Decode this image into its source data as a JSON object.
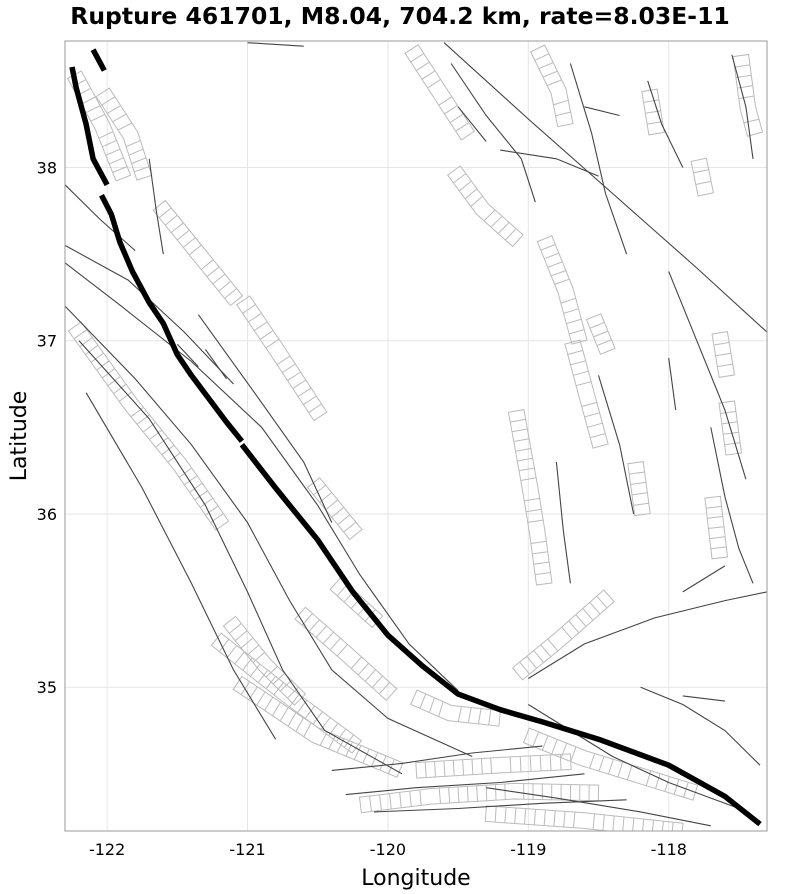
{
  "chart_data": {
    "type": "map",
    "title": "Rupture 461701, M8.04, 704.2 km, rate=8.03E-11",
    "xlabel": "Longitude",
    "ylabel": "Latitude",
    "xlim": [
      -122.3,
      -117.3
    ],
    "ylim": [
      34.17,
      38.73
    ],
    "x_ticks": [
      -122,
      -121,
      -120,
      -119,
      -118
    ],
    "x_tick_labels": [
      "-122",
      "-121",
      "-120",
      "-119",
      "-118"
    ],
    "y_ticks": [
      35,
      36,
      37,
      38
    ],
    "y_tick_labels": [
      "35",
      "36",
      "37",
      "38"
    ],
    "rupture_color": "#000000",
    "fault_color": "#444444",
    "footprint_color": "#bbbbbb",
    "rupture_segments": [
      [
        [
          -122.25,
          38.58
        ],
        [
          -122.22,
          38.46
        ],
        [
          -122.15,
          38.25
        ],
        [
          -122.1,
          38.05
        ],
        [
          -122.0,
          37.9
        ]
      ],
      [
        [
          -122.04,
          37.84
        ],
        [
          -121.97,
          37.73
        ],
        [
          -121.91,
          37.57
        ],
        [
          -121.82,
          37.4
        ],
        [
          -121.7,
          37.22
        ],
        [
          -121.6,
          37.1
        ],
        [
          -121.5,
          36.92
        ],
        [
          -121.4,
          36.8
        ],
        [
          -121.27,
          36.66
        ],
        [
          -121.15,
          36.53
        ],
        [
          -121.04,
          36.42
        ]
      ],
      [
        [
          -121.04,
          36.4
        ],
        [
          -120.8,
          36.15
        ],
        [
          -120.5,
          35.85
        ],
        [
          -120.25,
          35.55
        ],
        [
          -120.0,
          35.3
        ],
        [
          -119.75,
          35.12
        ],
        [
          -119.5,
          34.96
        ],
        [
          -119.2,
          34.87
        ],
        [
          -118.9,
          34.8
        ],
        [
          -118.5,
          34.7
        ],
        [
          -118.0,
          34.55
        ],
        [
          -117.6,
          34.37
        ],
        [
          -117.35,
          34.21
        ]
      ]
    ],
    "rupture_stub": [
      [
        -122.1,
        38.68
      ],
      [
        -122.02,
        38.56
      ]
    ],
    "faults": [
      [
        [
          -122.3,
          37.45
        ],
        [
          -121.9,
          37.2
        ],
        [
          -121.4,
          36.88
        ],
        [
          -120.9,
          36.5
        ],
        [
          -120.5,
          36.05
        ],
        [
          -120.2,
          35.65
        ],
        [
          -119.85,
          35.25
        ],
        [
          -119.5,
          34.98
        ]
      ],
      [
        [
          -122.3,
          37.2
        ],
        [
          -121.8,
          36.78
        ],
        [
          -121.4,
          36.4
        ],
        [
          -121.0,
          35.95
        ],
        [
          -120.7,
          35.5
        ],
        [
          -120.4,
          35.1
        ],
        [
          -120.0,
          34.82
        ],
        [
          -119.4,
          34.6
        ]
      ],
      [
        [
          -122.2,
          37.0
        ],
        [
          -121.7,
          36.55
        ],
        [
          -121.3,
          36.05
        ],
        [
          -121.0,
          35.55
        ],
        [
          -120.75,
          35.1
        ],
        [
          -120.45,
          34.75
        ],
        [
          -119.9,
          34.5
        ]
      ],
      [
        [
          -122.15,
          36.7
        ],
        [
          -121.75,
          36.15
        ],
        [
          -121.4,
          35.6
        ],
        [
          -121.1,
          35.1
        ],
        [
          -120.8,
          34.7
        ]
      ],
      [
        [
          -122.3,
          37.55
        ],
        [
          -121.85,
          37.35
        ],
        [
          -121.45,
          37.05
        ],
        [
          -121.1,
          36.75
        ]
      ],
      [
        [
          -122.3,
          37.9
        ],
        [
          -122.05,
          37.7
        ],
        [
          -121.8,
          37.52
        ]
      ],
      [
        [
          -121.7,
          38.05
        ],
        [
          -121.65,
          37.75
        ],
        [
          -121.6,
          37.5
        ]
      ],
      [
        [
          -121.35,
          37.15
        ],
        [
          -120.95,
          36.7
        ],
        [
          -120.6,
          36.3
        ],
        [
          -120.4,
          35.95
        ]
      ],
      [
        [
          -120.4,
          34.52
        ],
        [
          -119.9,
          34.56
        ],
        [
          -119.4,
          34.62
        ],
        [
          -118.9,
          34.66
        ]
      ],
      [
        [
          -120.3,
          34.38
        ],
        [
          -119.8,
          34.42
        ],
        [
          -119.2,
          34.45
        ],
        [
          -118.6,
          34.5
        ]
      ],
      [
        [
          -120.1,
          34.28
        ],
        [
          -119.5,
          34.3
        ],
        [
          -118.9,
          34.33
        ],
        [
          -118.3,
          34.35
        ]
      ],
      [
        [
          -119.3,
          34.42
        ],
        [
          -118.8,
          34.36
        ],
        [
          -118.2,
          34.28
        ],
        [
          -117.7,
          34.2
        ]
      ],
      [
        [
          -119.0,
          34.9
        ],
        [
          -118.7,
          34.75
        ],
        [
          -118.4,
          34.6
        ],
        [
          -118.0,
          34.45
        ],
        [
          -117.5,
          34.3
        ]
      ],
      [
        [
          -119.0,
          35.05
        ],
        [
          -118.6,
          35.25
        ],
        [
          -118.1,
          35.4
        ],
        [
          -117.6,
          35.5
        ],
        [
          -117.3,
          35.55
        ]
      ],
      [
        [
          -118.2,
          35.0
        ],
        [
          -117.9,
          34.9
        ],
        [
          -117.6,
          34.75
        ],
        [
          -117.35,
          34.55
        ]
      ],
      [
        [
          -119.6,
          38.72
        ],
        [
          -119.0,
          38.28
        ],
        [
          -118.4,
          37.85
        ],
        [
          -117.8,
          37.42
        ],
        [
          -117.3,
          37.05
        ]
      ],
      [
        [
          -121.0,
          38.72
        ],
        [
          -120.6,
          38.7
        ]
      ],
      [
        [
          -118.0,
          37.4
        ],
        [
          -117.8,
          37.0
        ],
        [
          -117.6,
          36.6
        ],
        [
          -117.45,
          36.2
        ]
      ],
      [
        [
          -118.7,
          38.6
        ],
        [
          -118.55,
          38.2
        ],
        [
          -118.45,
          37.85
        ],
        [
          -118.3,
          37.5
        ]
      ],
      [
        [
          -119.55,
          38.6
        ],
        [
          -119.3,
          38.3
        ],
        [
          -119.05,
          38.05
        ],
        [
          -118.95,
          37.8
        ]
      ],
      [
        [
          -118.15,
          38.5
        ],
        [
          -118.05,
          38.25
        ],
        [
          -117.9,
          38.0
        ]
      ],
      [
        [
          -117.55,
          38.65
        ],
        [
          -117.45,
          38.35
        ],
        [
          -117.4,
          38.05
        ]
      ],
      [
        [
          -117.7,
          36.5
        ],
        [
          -117.6,
          36.1
        ],
        [
          -117.5,
          35.8
        ],
        [
          -117.4,
          35.6
        ]
      ],
      [
        [
          -118.5,
          36.8
        ],
        [
          -118.35,
          36.4
        ],
        [
          -118.25,
          36.0
        ]
      ],
      [
        [
          -118.0,
          36.9
        ],
        [
          -117.95,
          36.6
        ]
      ],
      [
        [
          -117.6,
          35.7
        ],
        [
          -117.9,
          35.55
        ]
      ],
      [
        [
          -117.9,
          34.95
        ],
        [
          -117.6,
          34.92
        ]
      ],
      [
        [
          -118.8,
          36.3
        ],
        [
          -118.75,
          35.9
        ],
        [
          -118.7,
          35.6
        ]
      ],
      [
        [
          -119.2,
          38.1
        ],
        [
          -118.8,
          38.05
        ],
        [
          -118.5,
          37.95
        ]
      ],
      [
        [
          -118.6,
          38.35
        ],
        [
          -118.35,
          38.3
        ]
      ],
      [
        [
          -119.5,
          38.35
        ],
        [
          -119.3,
          38.15
        ]
      ],
      [
        [
          -121.5,
          36.98
        ],
        [
          -121.35,
          36.85
        ]
      ],
      [
        [
          -121.3,
          36.95
        ],
        [
          -121.15,
          36.78
        ]
      ]
    ],
    "footprints": [
      [
        [
          -122.2,
          38.55
        ],
        [
          -122.0,
          38.25
        ],
        [
          -121.85,
          37.95
        ]
      ],
      [
        [
          -122.0,
          38.45
        ],
        [
          -121.8,
          38.2
        ],
        [
          -121.7,
          37.95
        ]
      ],
      [
        [
          -121.6,
          37.8
        ],
        [
          -121.3,
          37.5
        ],
        [
          -121.05,
          37.25
        ]
      ],
      [
        [
          -121.0,
          37.25
        ],
        [
          -120.75,
          36.95
        ],
        [
          -120.45,
          36.58
        ]
      ],
      [
        [
          -120.5,
          36.2
        ],
        [
          -120.2,
          35.9
        ]
      ],
      [
        [
          -120.35,
          35.62
        ],
        [
          -120.05,
          35.4
        ]
      ],
      [
        [
          -120.6,
          35.45
        ],
        [
          -120.25,
          35.2
        ],
        [
          -119.95,
          34.98
        ]
      ],
      [
        [
          -121.2,
          35.3
        ],
        [
          -120.7,
          34.98
        ],
        [
          -120.2,
          34.68
        ]
      ],
      [
        [
          -121.05,
          35.05
        ],
        [
          -120.5,
          34.75
        ],
        [
          -119.9,
          34.55
        ]
      ],
      [
        [
          -122.2,
          37.1
        ],
        [
          -121.8,
          36.65
        ],
        [
          -121.45,
          36.3
        ],
        [
          -121.15,
          35.95
        ]
      ],
      [
        [
          -121.1,
          35.4
        ],
        [
          -120.85,
          35.15
        ],
        [
          -120.6,
          34.95
        ]
      ],
      [
        [
          -120.2,
          34.35
        ],
        [
          -119.7,
          34.4
        ],
        [
          -119.1,
          34.43
        ],
        [
          -118.5,
          34.42
        ]
      ],
      [
        [
          -119.8,
          34.55
        ],
        [
          -119.2,
          34.58
        ],
        [
          -118.7,
          34.6
        ]
      ],
      [
        [
          -119.3,
          34.3
        ],
        [
          -118.6,
          34.26
        ],
        [
          -117.9,
          34.2
        ]
      ],
      [
        [
          -119.0,
          34.75
        ],
        [
          -118.6,
          34.62
        ],
        [
          -118.2,
          34.52
        ],
        [
          -117.8,
          34.42
        ]
      ],
      [
        [
          -119.8,
          34.97
        ],
        [
          -119.55,
          34.88
        ],
        [
          -119.2,
          34.85
        ]
      ],
      [
        [
          -119.8,
          38.7
        ],
        [
          -119.6,
          38.45
        ],
        [
          -119.4,
          38.2
        ]
      ],
      [
        [
          -119.5,
          38.0
        ],
        [
          -119.3,
          37.78
        ],
        [
          -119.05,
          37.6
        ]
      ],
      [
        [
          -118.9,
          38.7
        ],
        [
          -118.75,
          38.45
        ],
        [
          -118.7,
          38.25
        ]
      ],
      [
        [
          -118.85,
          37.6
        ],
        [
          -118.7,
          37.3
        ],
        [
          -118.6,
          37.0
        ]
      ],
      [
        [
          -118.65,
          37.0
        ],
        [
          -118.55,
          36.7
        ],
        [
          -118.45,
          36.4
        ]
      ],
      [
        [
          -118.1,
          38.45
        ],
        [
          -118.05,
          38.2
        ]
      ],
      [
        [
          -117.45,
          38.65
        ],
        [
          -117.4,
          38.35
        ],
        [
          -117.35,
          38.2
        ]
      ],
      [
        [
          -117.75,
          38.05
        ],
        [
          -117.7,
          37.85
        ]
      ],
      [
        [
          -117.55,
          36.65
        ],
        [
          -117.5,
          36.35
        ]
      ],
      [
        [
          -117.65,
          36.1
        ],
        [
          -117.6,
          35.75
        ]
      ],
      [
        [
          -119.05,
          36.6
        ],
        [
          -118.95,
          36.15
        ],
        [
          -118.9,
          35.9
        ],
        [
          -118.85,
          35.6
        ]
      ],
      [
        [
          -119.1,
          35.1
        ],
        [
          -118.8,
          35.3
        ],
        [
          -118.45,
          35.55
        ]
      ],
      [
        [
          -118.2,
          36.3
        ],
        [
          -118.15,
          36.0
        ]
      ],
      [
        [
          -117.6,
          37.05
        ],
        [
          -117.55,
          36.8
        ]
      ],
      [
        [
          -118.5,
          37.15
        ],
        [
          -118.4,
          36.95
        ]
      ]
    ]
  }
}
